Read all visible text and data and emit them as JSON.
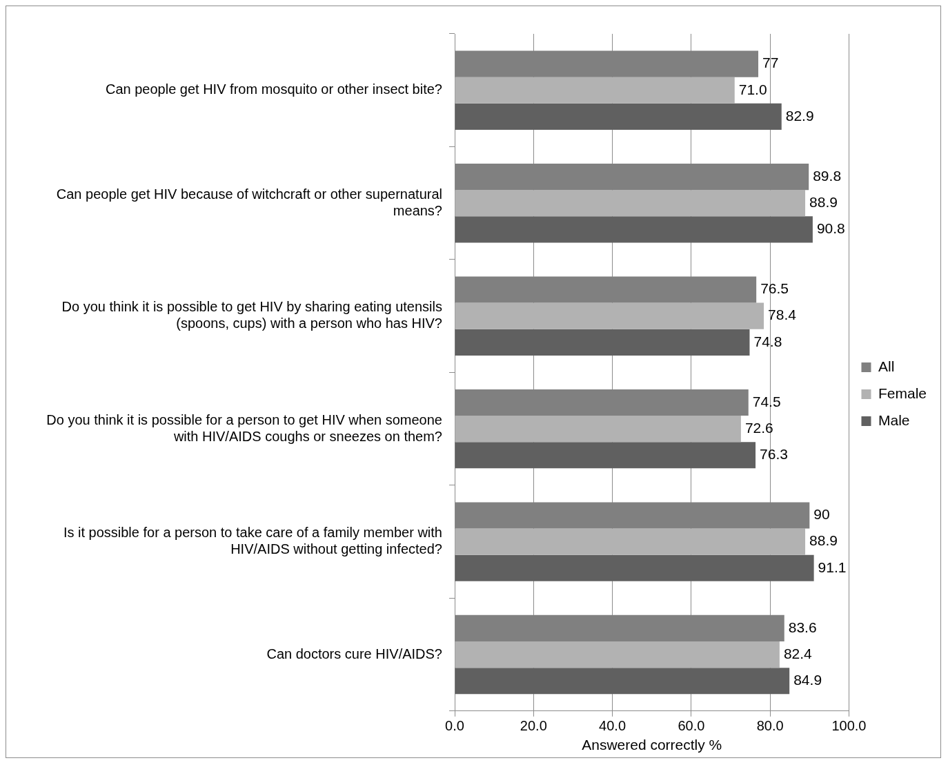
{
  "chart_data": {
    "type": "bar",
    "orientation": "horizontal",
    "xlabel": "Answered correctly %",
    "categories": [
      "Can people get HIV from mosquito or other insect bite?",
      "Can people get HIV because of witchcraft or other supernatural means?",
      "Do you think it is possible to get HIV by sharing eating utensils (spoons, cups) with a person who has HIV?",
      "Do you think it is possible for a person to get HIV when someone with HIV/AIDS coughs or sneezes on them?",
      "Is it possible for a person to take care of a family member with HIV/AIDS without getting infected?",
      "Can doctors cure HIV/AIDS?"
    ],
    "series": [
      {
        "name": "All",
        "color": "#808080",
        "values": [
          77,
          89.8,
          76.5,
          74.5,
          90,
          83.6
        ],
        "value_labels": [
          "77",
          "89.8",
          "76.5",
          "74.5",
          "90",
          "83.6"
        ]
      },
      {
        "name": "Female",
        "color": "#b2b2b2",
        "values": [
          71.0,
          88.9,
          78.4,
          72.6,
          88.9,
          82.4
        ],
        "value_labels": [
          "71.0",
          "88.9",
          "78.4",
          "72.6",
          "88.9",
          "82.4"
        ]
      },
      {
        "name": "Male",
        "color": "#606060",
        "values": [
          82.9,
          90.8,
          74.8,
          76.3,
          91.1,
          84.9
        ],
        "value_labels": [
          "82.9",
          "90.8",
          "74.8",
          "76.3",
          "91.1",
          "84.9"
        ]
      }
    ],
    "xlim": [
      0,
      100
    ],
    "xticks": [
      {
        "value": 0,
        "label": "0.0"
      },
      {
        "value": 20,
        "label": "20.0"
      },
      {
        "value": 40,
        "label": "40.0"
      },
      {
        "value": 60,
        "label": "60.0"
      },
      {
        "value": 80,
        "label": "80.0"
      },
      {
        "value": 100,
        "label": "100.0"
      }
    ],
    "grid": "x",
    "legend": "right"
  }
}
